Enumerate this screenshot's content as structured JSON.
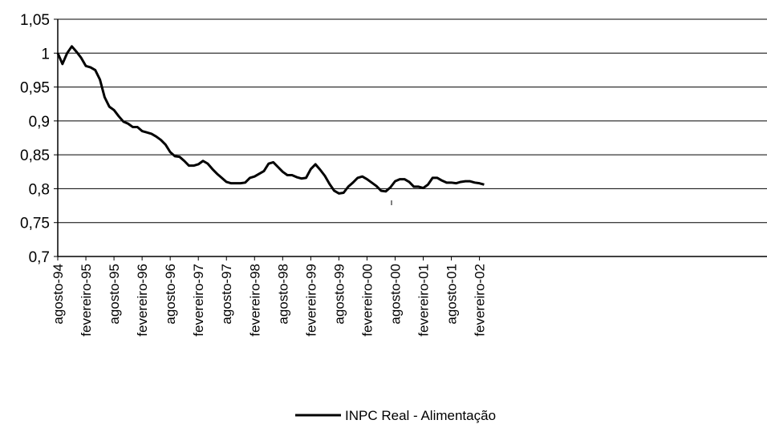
{
  "chart_data": {
    "type": "line",
    "title": "",
    "xlabel": "",
    "ylabel": "",
    "ylim": [
      0.7,
      1.05
    ],
    "yticks": [
      "0,7",
      "0,75",
      "0,8",
      "0,85",
      "0,9",
      "0,95",
      "1",
      "1,05"
    ],
    "grid": "horizontal",
    "legend_position": "bottom",
    "x_tick_labels": [
      "agosto-94",
      "fevereiro-95",
      "agosto-95",
      "fevereiro-96",
      "agosto-96",
      "fevereiro-97",
      "agosto-97",
      "fevereiro-98",
      "agosto-98",
      "fevereiro-99",
      "agosto-99",
      "fevereiro-00",
      "agosto-00",
      "fevereiro-01",
      "agosto-01",
      "fevereiro-02"
    ],
    "series": [
      {
        "name": "INPC Real - Alimentação",
        "color": "#000000",
        "values": [
          1.0,
          0.984,
          1.0,
          1.01,
          1.002,
          0.993,
          0.981,
          0.979,
          0.975,
          0.961,
          0.935,
          0.921,
          0.916,
          0.907,
          0.899,
          0.896,
          0.891,
          0.891,
          0.885,
          0.883,
          0.881,
          0.877,
          0.872,
          0.865,
          0.854,
          0.848,
          0.847,
          0.841,
          0.834,
          0.834,
          0.836,
          0.841,
          0.837,
          0.829,
          0.822,
          0.816,
          0.81,
          0.808,
          0.808,
          0.808,
          0.809,
          0.816,
          0.818,
          0.822,
          0.826,
          0.837,
          0.839,
          0.832,
          0.825,
          0.82,
          0.82,
          0.817,
          0.815,
          0.816,
          0.829,
          0.836,
          0.828,
          0.819,
          0.807,
          0.797,
          0.793,
          0.794,
          0.803,
          0.809,
          0.816,
          0.818,
          0.814,
          0.809,
          0.804,
          0.797,
          0.796,
          0.802,
          0.811,
          0.814,
          0.814,
          0.81,
          0.803,
          0.803,
          0.801,
          0.806,
          0.816,
          0.816,
          0.812,
          0.809,
          0.809,
          0.808,
          0.81,
          0.811,
          0.811,
          0.809,
          0.808,
          0.806
        ]
      }
    ]
  }
}
